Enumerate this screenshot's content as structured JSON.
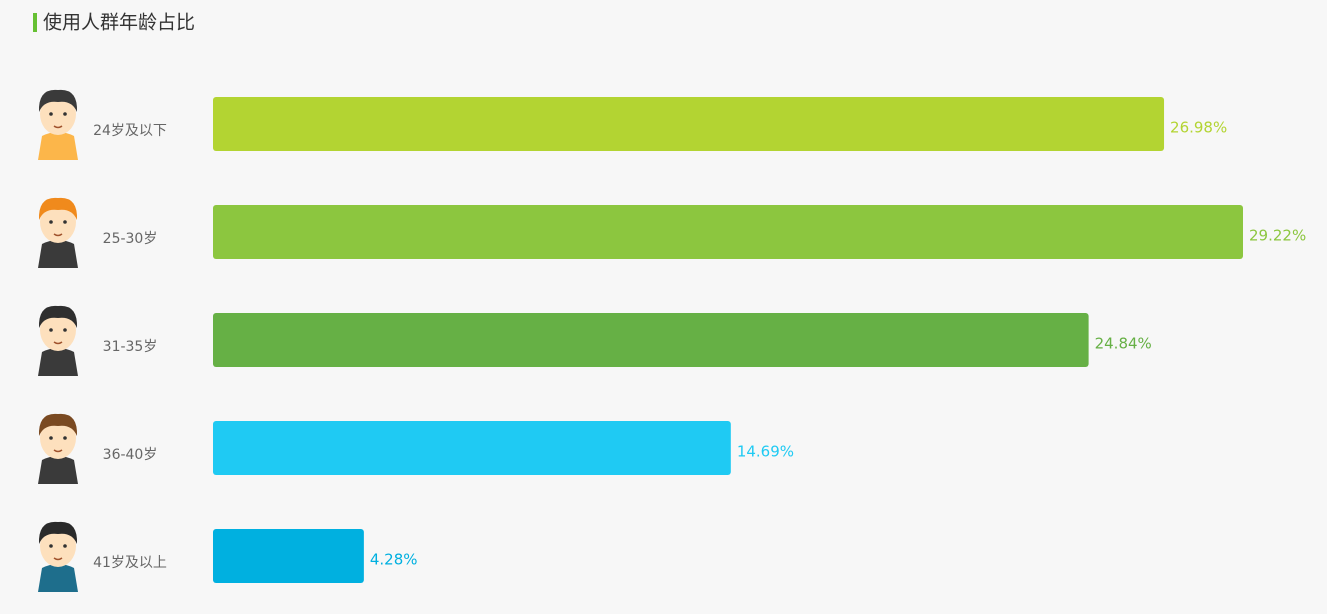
{
  "chart_data": {
    "type": "bar",
    "orientation": "horizontal",
    "title": "使用人群年龄占比",
    "categories": [
      "24岁及以下",
      "25-30岁",
      "31-35岁",
      "36-40岁",
      "41岁及以上"
    ],
    "values": [
      26.98,
      29.22,
      24.84,
      14.69,
      4.28
    ],
    "value_labels": [
      "26.98%",
      "29.22%",
      "24.84%",
      "14.69%",
      "4.28%"
    ],
    "colors": [
      "#b3d432",
      "#8cc63f",
      "#66b045",
      "#1fcaf3",
      "#00b0e0"
    ]
  }
}
